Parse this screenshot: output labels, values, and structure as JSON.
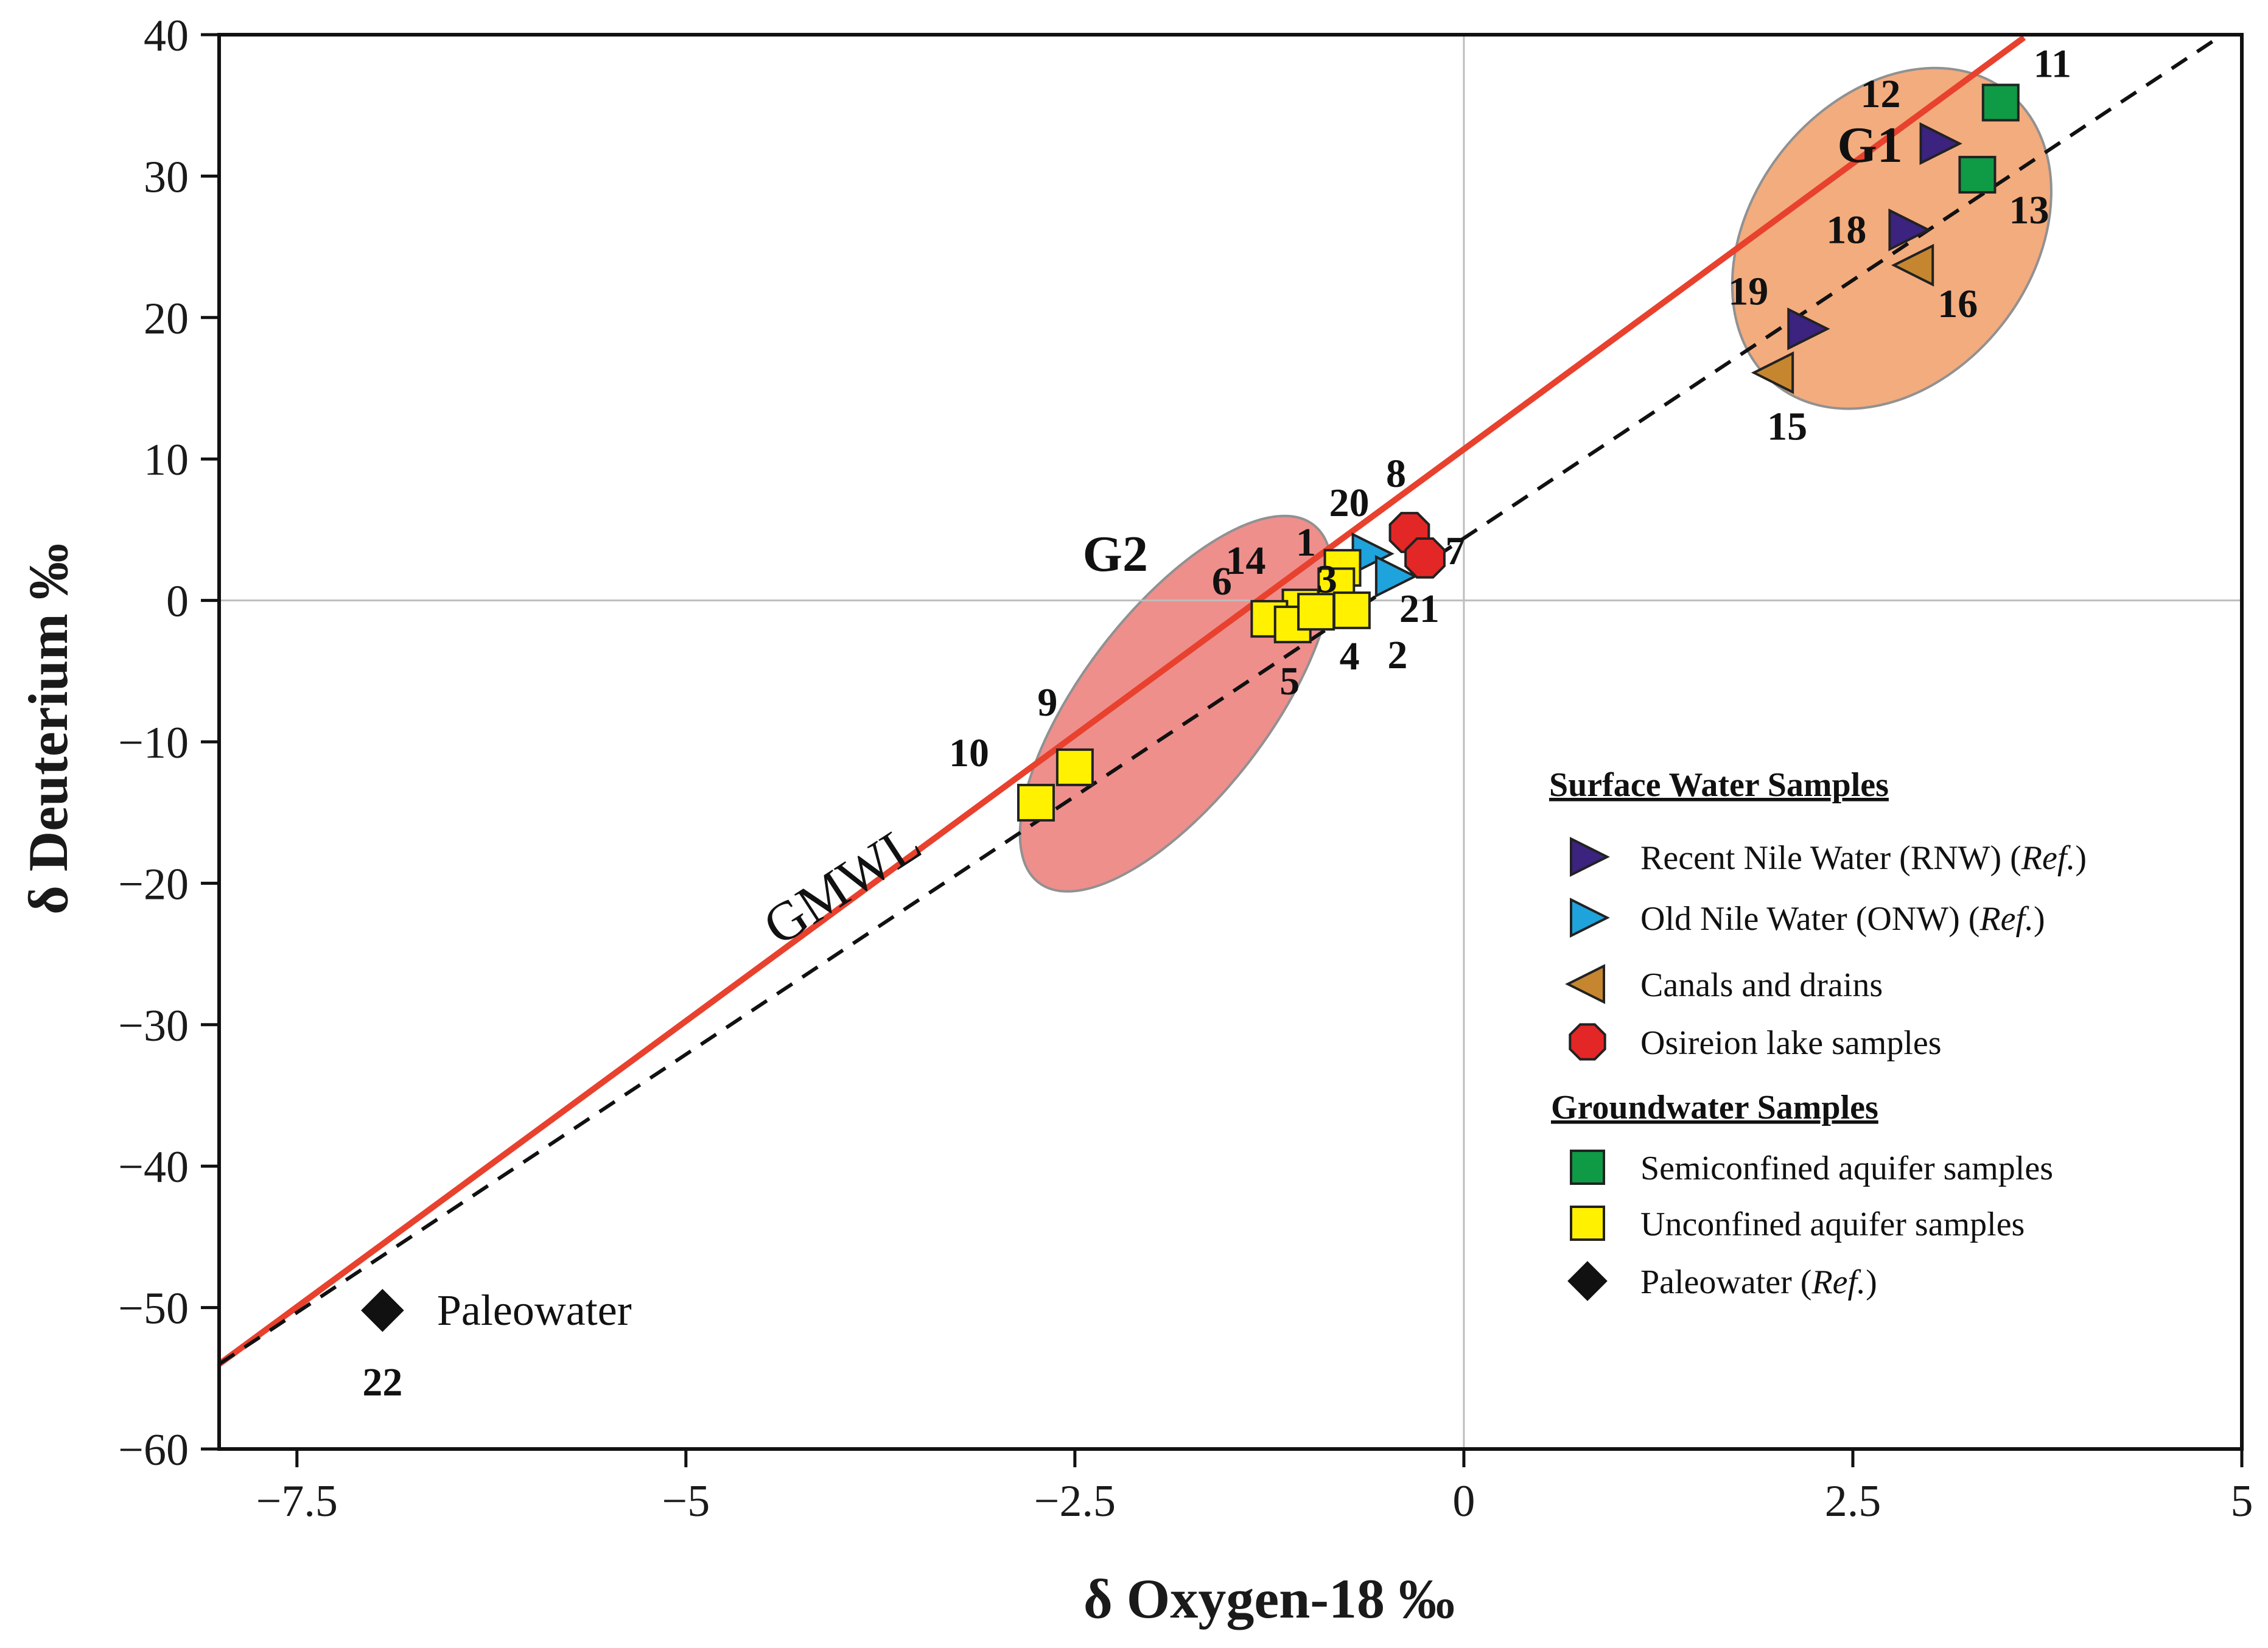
{
  "chart_data": {
    "type": "scatter",
    "title": "",
    "xlabel": "δ Oxygen-18 ‰",
    "ylabel": "δ Deuterium ‰",
    "xlim": [
      -8,
      5
    ],
    "ylim": [
      -60,
      40
    ],
    "xticks": [
      -7.5,
      -5,
      -2.5,
      0,
      2.5,
      5
    ],
    "xtick_labels": [
      "−7.5",
      "−5",
      "−2.5",
      "0",
      "2.5",
      "5"
    ],
    "yticks": [
      40,
      30,
      20,
      10,
      0,
      -10,
      -20,
      -30,
      -40,
      -50,
      -60
    ],
    "ytick_labels": [
      "40",
      "30",
      "20",
      "10",
      "0",
      "−10",
      "−20",
      "−30",
      "−40",
      "−50",
      "−60"
    ],
    "grid": false,
    "zero_lines": true,
    "legend_position": "bottom-right",
    "colors": {
      "gmwl": "#e8412e",
      "rnw": "#3b237f",
      "onw": "#1fa3dc",
      "canal": "#c68630",
      "lake": "#e32726",
      "semi": "#0f9a46",
      "unconf": "#fff100",
      "paleo": "#111111",
      "g1_fill": "#f3a878",
      "g2_fill": "#ee8a86"
    },
    "lines": [
      {
        "name": "GMWL",
        "style": "solid",
        "x": [
          -8,
          3.6
        ],
        "y": [
          -54,
          39.8
        ]
      },
      {
        "name": "",
        "style": "dashed",
        "x": [
          -8,
          4.85
        ],
        "y": [
          -54,
          39.8
        ]
      }
    ],
    "groups": [
      {
        "name": "G1",
        "cx": 2.75,
        "cy": 25.6,
        "rx": 1.2,
        "ry": 4.5,
        "angle_deg": 83.2
      },
      {
        "name": "G2",
        "cx": -1.85,
        "cy": -7.3,
        "rx": 1.45,
        "ry": 3.0,
        "angle_deg": 82.5
      }
    ],
    "series": [
      {
        "name": "Recent Nile Water (RNW) (Ref.)",
        "marker": "triangle-right",
        "color": "#3b237f",
        "points": [
          {
            "id": "12",
            "x": 3.05,
            "y": 32.3
          },
          {
            "id": "18",
            "x": 2.85,
            "y": 26.2
          },
          {
            "id": "19",
            "x": 2.2,
            "y": 19.2
          }
        ]
      },
      {
        "name": "Old Nile Water (ONW) (Ref.)",
        "marker": "triangle-right",
        "color": "#1fa3dc",
        "points": [
          {
            "id": "20",
            "x": -0.6,
            "y": 3.3
          },
          {
            "id": "21",
            "x": -0.45,
            "y": 1.7
          }
        ]
      },
      {
        "name": "Canals and drains",
        "marker": "triangle-left",
        "color": "#c68630",
        "points": [
          {
            "id": "16",
            "x": 2.9,
            "y": 23.7
          },
          {
            "id": "15",
            "x": 2.0,
            "y": 16.1
          }
        ]
      },
      {
        "name": "Osireion lake samples",
        "marker": "octagon",
        "color": "#e32726",
        "points": [
          {
            "id": "8",
            "x": -0.35,
            "y": 4.8
          },
          {
            "id": "7",
            "x": -0.25,
            "y": 3.0
          }
        ]
      },
      {
        "name": "Semiconfined aquifer samples",
        "marker": "square",
        "color": "#0f9a46",
        "points": [
          {
            "id": "11",
            "x": 3.45,
            "y": 35.2
          },
          {
            "id": "13",
            "x": 3.3,
            "y": 30.1
          }
        ]
      },
      {
        "name": "Unconfined aquifer samples",
        "marker": "square",
        "color": "#fff100",
        "points": [
          {
            "id": "1",
            "x": -0.78,
            "y": 2.3
          },
          {
            "id": "3",
            "x": -0.82,
            "y": 1.0
          },
          {
            "id": "14",
            "x": -1.05,
            "y": -0.5
          },
          {
            "id": "6",
            "x": -1.25,
            "y": -1.3
          },
          {
            "id": "5",
            "x": -1.1,
            "y": -1.7
          },
          {
            "id": "4",
            "x": -0.95,
            "y": -0.8
          },
          {
            "id": "2",
            "x": -0.72,
            "y": -0.7
          },
          {
            "id": "9",
            "x": -2.5,
            "y": -11.8
          },
          {
            "id": "10",
            "x": -2.75,
            "y": -14.3
          }
        ]
      },
      {
        "name": "Paleowater (Ref.)",
        "marker": "diamond",
        "color": "#111111",
        "points": [
          {
            "id": "22",
            "x": -6.95,
            "y": -50.2
          }
        ]
      }
    ],
    "annotations": {
      "gmwl_label": "GMWL",
      "paleo_label": "Paleowater",
      "g1_label": "G1",
      "g2_label": "G2"
    },
    "legend": {
      "surface_heading": "Surface Water Samples",
      "groundwater_heading": "Groundwater Samples",
      "items": [
        {
          "marker": "triangle-right",
          "color": "#3b237f",
          "text": "Recent Nile Water (RNW) ",
          "ref": "Ref."
        },
        {
          "marker": "triangle-right",
          "color": "#1fa3dc",
          "text": "Old Nile Water (ONW) ",
          "ref": "Ref."
        },
        {
          "marker": "triangle-left",
          "color": "#c68630",
          "text": "Canals and drains",
          "ref": ""
        },
        {
          "marker": "octagon",
          "color": "#e32726",
          "text": "Osireion lake samples",
          "ref": ""
        },
        {
          "marker": "square",
          "color": "#0f9a46",
          "text": "Semiconfined aquifer samples",
          "ref": ""
        },
        {
          "marker": "square",
          "color": "#fff100",
          "text": "Unconfined aquifer samples",
          "ref": ""
        },
        {
          "marker": "diamond",
          "color": "#111111",
          "text": "Paleowater ",
          "ref": "Ref."
        }
      ]
    }
  }
}
